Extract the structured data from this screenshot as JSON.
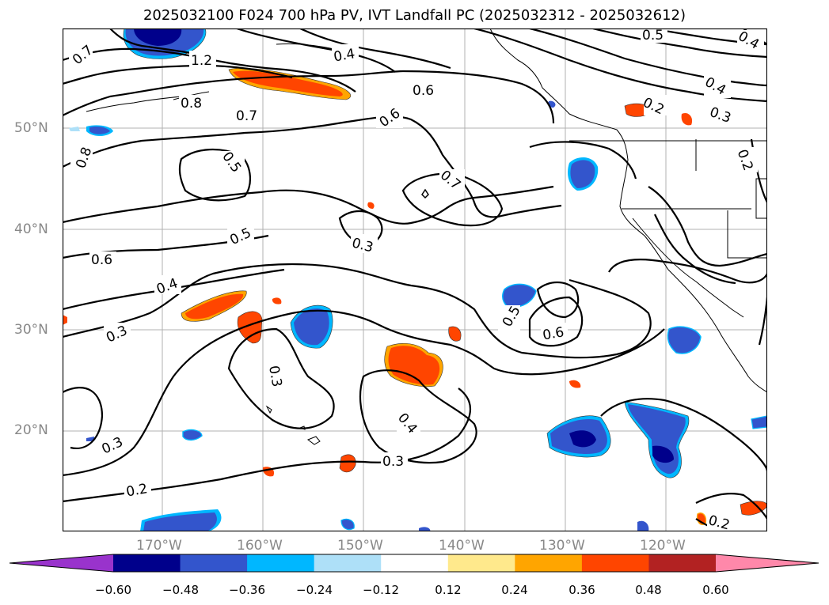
{
  "title": "2025032100 F024 700 hPa PV, IVT Landfall PC (2025032312 - 2025032612)",
  "lat_labels": [
    "50°N",
    "40°N",
    "30°N",
    "20°N"
  ],
  "lon_labels": [
    "170°W",
    "160°W",
    "150°W",
    "140°W",
    "130°W",
    "120°W"
  ],
  "contour_labels": [
    "0.7",
    "1.2",
    "0.8",
    "0.7",
    "0.8",
    "0.5",
    "0.5",
    "0.6",
    "0.4",
    "0.3",
    "0.3",
    "0.3",
    "0.2",
    "0.4",
    "0.6",
    "0.6",
    "0.7",
    "0.3",
    "0.4",
    "0.3",
    "0.5",
    "0.6",
    "0.5",
    "0.4",
    "0.4",
    "0.3",
    "0.2",
    "0.2",
    "0.2"
  ],
  "colorbar": {
    "ticks": [
      "−0.60",
      "−0.48",
      "−0.36",
      "−0.24",
      "−0.12",
      "0.12",
      "0.24",
      "0.36",
      "0.48",
      "0.60"
    ],
    "colors": [
      "#9933cc",
      "#00008b",
      "#3355cc",
      "#00b7ff",
      "#aee0f8",
      "#ffffff",
      "#ffe98c",
      "#ffa500",
      "#ff4500",
      "#b22222",
      "#ff88aa"
    ]
  }
}
